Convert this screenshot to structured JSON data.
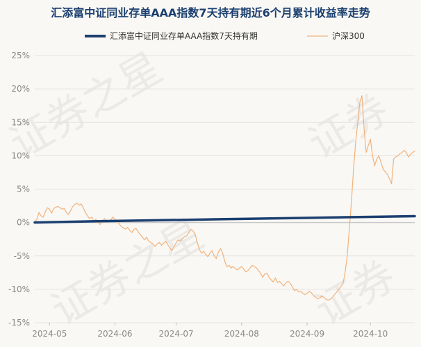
{
  "chart_data": {
    "type": "line",
    "title": "汇添富中证同业存单AAA指数7天持有期近6个月累计收益率走势",
    "ylim": [
      -15,
      25
    ],
    "y_ticks": [
      "25%",
      "20%",
      "15%",
      "10%",
      "5%",
      "0%",
      "-5%",
      "-10%",
      "-15%"
    ],
    "y_tick_values": [
      25,
      20,
      15,
      10,
      5,
      0,
      -5,
      -10,
      -15
    ],
    "x_tick_labels": [
      "2024-05",
      "2024-06",
      "2024-07",
      "2024-08",
      "2024-09",
      "2024-10"
    ],
    "x_tick_positions": [
      7,
      38,
      67,
      98,
      129,
      159
    ],
    "x_range": [
      0,
      180
    ],
    "grid": "horizontal",
    "legend_position": "top",
    "series": [
      {
        "name": "汇添富中证同业存单AAA指数7天持有期",
        "color": "#1b3f70",
        "x": [
          0,
          30,
          60,
          90,
          120,
          150,
          180
        ],
        "y": [
          0.0,
          0.2,
          0.35,
          0.5,
          0.65,
          0.8,
          0.95
        ]
      },
      {
        "name": "沪深300",
        "color": "#f2b27d",
        "x": [
          0,
          1,
          2,
          3,
          4,
          5,
          6,
          7,
          8,
          9,
          10,
          11,
          12,
          13,
          14,
          15,
          16,
          17,
          18,
          19,
          20,
          21,
          22,
          23,
          24,
          25,
          26,
          27,
          28,
          29,
          30,
          31,
          32,
          33,
          34,
          35,
          36,
          37,
          38,
          39,
          40,
          41,
          42,
          43,
          44,
          45,
          46,
          47,
          48,
          49,
          50,
          51,
          52,
          53,
          54,
          55,
          56,
          57,
          58,
          59,
          60,
          61,
          62,
          63,
          64,
          65,
          66,
          67,
          68,
          69,
          70,
          71,
          72,
          73,
          74,
          75,
          76,
          77,
          78,
          79,
          80,
          81,
          82,
          83,
          84,
          85,
          86,
          87,
          88,
          89,
          90,
          91,
          92,
          93,
          94,
          95,
          96,
          97,
          98,
          99,
          100,
          101,
          102,
          103,
          104,
          105,
          106,
          107,
          108,
          109,
          110,
          111,
          112,
          113,
          114,
          115,
          116,
          117,
          118,
          119,
          120,
          121,
          122,
          123,
          124,
          125,
          126,
          127,
          128,
          129,
          130,
          131,
          132,
          133,
          134,
          135,
          136,
          137,
          138,
          139,
          140,
          141,
          142,
          143,
          144,
          145,
          146,
          147,
          148,
          149,
          150,
          151,
          152,
          153,
          154,
          155,
          156,
          157,
          158,
          159,
          160,
          161,
          162,
          163,
          164,
          165,
          166,
          167,
          168,
          169,
          170,
          171,
          172,
          173,
          174,
          175,
          176,
          177,
          178,
          179,
          180
        ],
        "y": [
          0.0,
          0.5,
          1.5,
          1.0,
          0.8,
          1.6,
          2.2,
          2.0,
          1.4,
          2.1,
          2.3,
          2.4,
          2.2,
          2.0,
          2.1,
          1.5,
          1.2,
          1.8,
          2.4,
          2.7,
          2.9,
          2.6,
          2.8,
          2.2,
          1.5,
          1.0,
          0.6,
          0.8,
          0.2,
          0.5,
          0.0,
          -0.3,
          0.2,
          0.6,
          0.3,
          0.1,
          0.4,
          0.8,
          0.5,
          0.2,
          -0.2,
          -0.6,
          -0.8,
          -1.0,
          -0.7,
          -1.2,
          -1.5,
          -1.0,
          -0.9,
          -1.4,
          -1.8,
          -2.2,
          -2.6,
          -2.2,
          -2.8,
          -3.0,
          -3.2,
          -3.6,
          -3.2,
          -3.0,
          -3.4,
          -3.1,
          -2.8,
          -3.3,
          -3.8,
          -4.2,
          -3.6,
          -3.0,
          -2.6,
          -2.8,
          -2.4,
          -2.1,
          -2.0,
          -1.5,
          -1.0,
          -1.3,
          -1.8,
          -3.0,
          -4.0,
          -4.6,
          -4.3,
          -4.8,
          -5.1,
          -4.6,
          -4.2,
          -5.0,
          -5.4,
          -4.4,
          -3.9,
          -4.6,
          -5.8,
          -6.6,
          -6.4,
          -6.8,
          -6.6,
          -6.9,
          -7.1,
          -6.8,
          -6.6,
          -7.0,
          -7.4,
          -7.2,
          -6.8,
          -6.4,
          -6.6,
          -6.8,
          -7.2,
          -7.6,
          -8.2,
          -7.7,
          -7.6,
          -8.2,
          -8.6,
          -8.9,
          -8.3,
          -9.0,
          -8.8,
          -9.2,
          -9.5,
          -9.0,
          -8.8,
          -9.1,
          -9.6,
          -10.2,
          -10.0,
          -10.4,
          -10.3,
          -10.6,
          -10.8,
          -10.6,
          -10.3,
          -10.5,
          -10.9,
          -11.2,
          -11.4,
          -11.3,
          -11.0,
          -11.2,
          -11.5,
          -11.6,
          -11.5,
          -11.2,
          -10.8,
          -10.4,
          -10.0,
          -9.6,
          -9.2,
          -7.5,
          -5.0,
          -1.0,
          3.0,
          8.0,
          12.0,
          15.0,
          18.0,
          19.0,
          14.0,
          10.5,
          11.5,
          12.5,
          10.0,
          8.5,
          9.5,
          10.0,
          9.0,
          8.0,
          7.6,
          7.2,
          6.6,
          5.8,
          9.5,
          9.8,
          10.0,
          10.3,
          10.5,
          10.8,
          10.5,
          9.8,
          10.2,
          10.5,
          10.7
        ]
      }
    ]
  }
}
